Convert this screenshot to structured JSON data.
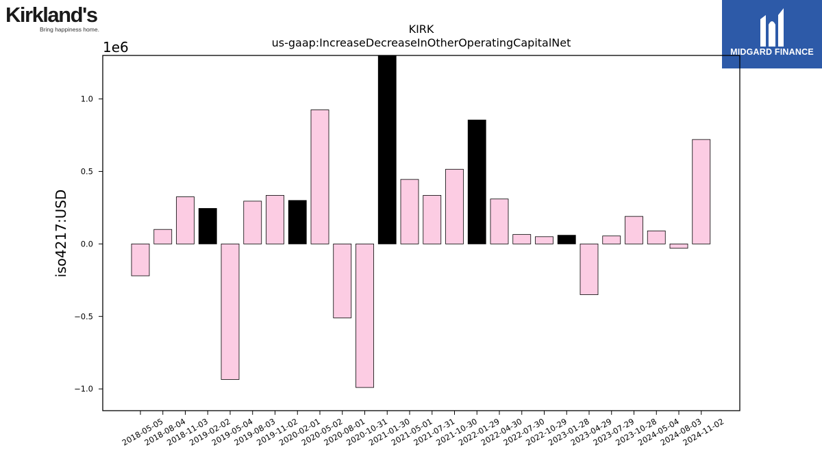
{
  "brand_left": {
    "name": "Kirkland's",
    "tagline": "Bring happiness home."
  },
  "brand_right": {
    "name": "MIDGARD FINANCE"
  },
  "chart_data": {
    "type": "bar",
    "title": "KIRK",
    "subtitle": "us-gaap:IncreaseDecreaseInOtherOperatingCapitalNet",
    "ylabel": "iso4217:USD",
    "xlabel": "",
    "y_offset_label": "1e6",
    "y_scale": 1000000,
    "ylim": [
      -1150000,
      1300000
    ],
    "yticks": [
      -1000000,
      -500000,
      0,
      500000,
      1000000
    ],
    "ytick_labels": [
      "−1.0",
      "−0.5",
      "0.0",
      "0.5",
      "1.0"
    ],
    "grid": false,
    "colors": {
      "default": "#fccce3",
      "highlight": "#000000",
      "edge": "#000000"
    },
    "categories": [
      "2018-05-05",
      "2018-08-04",
      "2018-11-03",
      "2019-02-02",
      "2019-05-04",
      "2019-08-03",
      "2019-11-02",
      "2020-02-01",
      "2020-05-02",
      "2020-08-01",
      "2020-10-31",
      "2021-01-30",
      "2021-05-01",
      "2021-07-31",
      "2021-10-30",
      "2022-01-29",
      "2022-04-30",
      "2022-07-30",
      "2022-10-29",
      "2023-01-28",
      "2023-04-29",
      "2023-07-29",
      "2023-10-28",
      "2024-05-04",
      "2024-08-03",
      "2024-11-02"
    ],
    "values": [
      -220000,
      100000,
      325000,
      245000,
      -935000,
      295000,
      335000,
      300000,
      925000,
      -510000,
      -990000,
      1300000,
      445000,
      335000,
      515000,
      855000,
      310000,
      65000,
      50000,
      60000,
      -350000,
      55000,
      190000,
      90000,
      -30000,
      720000
    ],
    "highlighted": [
      false,
      false,
      false,
      true,
      false,
      false,
      false,
      true,
      false,
      false,
      false,
      true,
      false,
      false,
      false,
      true,
      false,
      false,
      false,
      true,
      false,
      false,
      false,
      false,
      false,
      false
    ]
  }
}
